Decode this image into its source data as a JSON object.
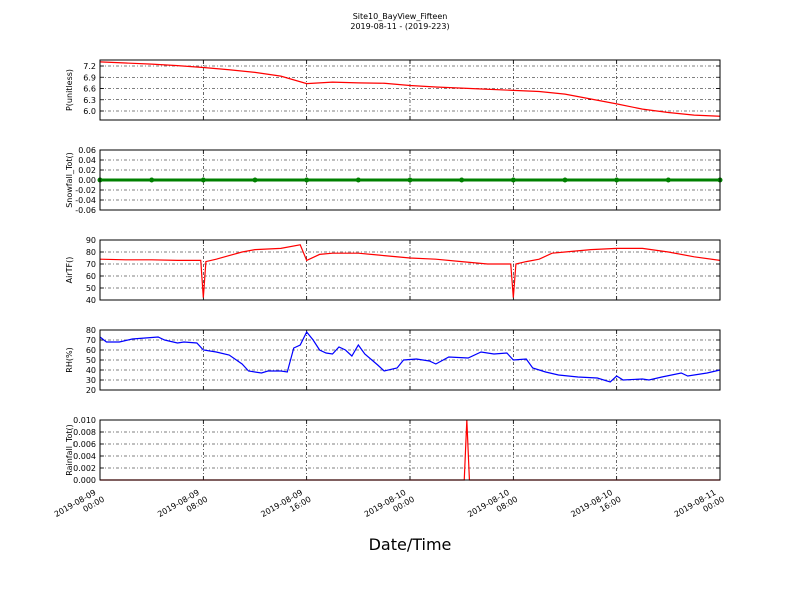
{
  "title": "Site10_BayView_Fifteen",
  "subtitle": "2019-08-11 - (2019-223)",
  "xlabel": "Date/Time",
  "chart_data": [
    {
      "type": "line",
      "ylabel": "P(unitless)",
      "color": "#ff0000",
      "grid": true,
      "xlim": [
        "2019-08-09 00:00",
        "2019-08-11 00:00"
      ],
      "xticks": [
        "2019-08-09 00:00",
        "2019-08-09 08:00",
        "2019-08-09 16:00",
        "2019-08-10 00:00",
        "2019-08-10 08:00",
        "2019-08-10 16:00",
        "2019-08-11 00:00"
      ],
      "ylim": [
        5.76,
        7.36
      ],
      "yticks": [
        {
          "value": 6,
          "label": "6.0"
        },
        6.3,
        6.6,
        6.9,
        7.2
      ],
      "x": [
        "2019-08-09 00:00",
        "2019-08-09 02:00",
        "2019-08-09 04:00",
        "2019-08-09 06:00",
        "2019-08-09 08:00",
        "2019-08-09 10:00",
        "2019-08-09 12:00",
        "2019-08-09 14:00",
        "2019-08-09 16:00",
        "2019-08-09 18:00",
        "2019-08-09 20:00",
        "2019-08-09 22:00",
        "2019-08-10 00:00",
        "2019-08-10 02:00",
        "2019-08-10 04:00",
        "2019-08-10 06:00",
        "2019-08-10 08:00",
        "2019-08-10 10:00",
        "2019-08-10 12:00",
        "2019-08-10 14:00",
        "2019-08-10 16:00",
        "2019-08-10 18:00",
        "2019-08-10 20:00",
        "2019-08-10 22:00",
        "2019-08-11 00:00"
      ],
      "values": [
        7.31,
        7.28,
        7.25,
        7.21,
        7.16,
        7.1,
        7.03,
        6.93,
        6.73,
        6.77,
        6.75,
        6.74,
        6.68,
        6.64,
        6.61,
        6.58,
        6.55,
        6.52,
        6.45,
        6.32,
        6.19,
        6.05,
        5.96,
        5.89,
        5.86
      ]
    },
    {
      "type": "line",
      "ylabel": "Snowfall_Tot()",
      "color": "#008000",
      "markers": true,
      "grid": true,
      "xlim": [
        "2019-08-09 00:00",
        "2019-08-11 00:00"
      ],
      "xticks": [
        "2019-08-09 00:00",
        "2019-08-09 08:00",
        "2019-08-09 16:00",
        "2019-08-10 00:00",
        "2019-08-10 08:00",
        "2019-08-10 16:00",
        "2019-08-11 00:00"
      ],
      "ylim": [
        -0.06,
        0.06
      ],
      "yticks": [
        -0.06,
        -0.04,
        -0.02,
        {
          "value": 0,
          "label": "0.00"
        },
        0.02,
        0.04,
        0.06
      ],
      "x": [
        "2019-08-09 00:00",
        "2019-08-09 04:00",
        "2019-08-09 08:00",
        "2019-08-09 12:00",
        "2019-08-09 16:00",
        "2019-08-09 20:00",
        "2019-08-10 00:00",
        "2019-08-10 04:00",
        "2019-08-10 08:00",
        "2019-08-10 12:00",
        "2019-08-10 16:00",
        "2019-08-10 20:00",
        "2019-08-11 00:00"
      ],
      "values": [
        0,
        0,
        0,
        0,
        0,
        0,
        0,
        0,
        0,
        0,
        0,
        0,
        0
      ]
    },
    {
      "type": "line",
      "ylabel": "AirTF()",
      "color": "#ff0000",
      "grid": true,
      "xlim": [
        "2019-08-09 00:00",
        "2019-08-11 00:00"
      ],
      "xticks": [
        "2019-08-09 00:00",
        "2019-08-09 08:00",
        "2019-08-09 16:00",
        "2019-08-10 00:00",
        "2019-08-10 08:00",
        "2019-08-10 16:00",
        "2019-08-11 00:00"
      ],
      "ylim": [
        40,
        90
      ],
      "yticks": [
        40,
        50,
        60,
        70,
        80,
        90
      ],
      "x": [
        "2019-08-09 00:00",
        "2019-08-09 02:00",
        "2019-08-09 04:00",
        "2019-08-09 06:00",
        "2019-08-09 07:48",
        "2019-08-09 08:00",
        "2019-08-09 08:12",
        "2019-08-09 09:00",
        "2019-08-09 10:00",
        "2019-08-09 11:00",
        "2019-08-09 12:00",
        "2019-08-09 14:00",
        "2019-08-09 15:30",
        "2019-08-09 16:00",
        "2019-08-09 17:00",
        "2019-08-09 18:00",
        "2019-08-09 20:00",
        "2019-08-09 22:00",
        "2019-08-10 00:00",
        "2019-08-10 02:00",
        "2019-08-10 04:00",
        "2019-08-10 06:00",
        "2019-08-10 07:48",
        "2019-08-10 08:00",
        "2019-08-10 08:12",
        "2019-08-10 09:00",
        "2019-08-10 10:00",
        "2019-08-10 11:00",
        "2019-08-10 12:00",
        "2019-08-10 14:00",
        "2019-08-10 16:00",
        "2019-08-10 18:00",
        "2019-08-10 20:00",
        "2019-08-10 22:00",
        "2019-08-11 00:00"
      ],
      "values": [
        74,
        73.5,
        73.5,
        73,
        73,
        42,
        72,
        74,
        77,
        80,
        82,
        83,
        86,
        73,
        78,
        79,
        79,
        77,
        75,
        74,
        72,
        70,
        70,
        42,
        70,
        72,
        74,
        79,
        80,
        82,
        83,
        83,
        80,
        76,
        73
      ]
    },
    {
      "type": "line",
      "ylabel": "RH(%)",
      "color": "#0000ff",
      "grid": true,
      "xlim": [
        "2019-08-09 00:00",
        "2019-08-11 00:00"
      ],
      "xticks": [
        "2019-08-09 00:00",
        "2019-08-09 08:00",
        "2019-08-09 16:00",
        "2019-08-10 00:00",
        "2019-08-10 08:00",
        "2019-08-10 16:00",
        "2019-08-11 00:00"
      ],
      "ylim": [
        20,
        80
      ],
      "yticks": [
        20,
        30,
        40,
        50,
        60,
        70,
        80
      ],
      "x": [
        "2019-08-09 00:00",
        "2019-08-09 00:30",
        "2019-08-09 01:30",
        "2019-08-09 02:30",
        "2019-08-09 03:30",
        "2019-08-09 04:30",
        "2019-08-09 05:00",
        "2019-08-09 06:00",
        "2019-08-09 06:30",
        "2019-08-09 07:30",
        "2019-08-09 08:00",
        "2019-08-09 09:00",
        "2019-08-09 10:00",
        "2019-08-09 11:00",
        "2019-08-09 11:30",
        "2019-08-09 12:30",
        "2019-08-09 13:00",
        "2019-08-09 14:00",
        "2019-08-09 14:30",
        "2019-08-09 15:00",
        "2019-08-09 15:30",
        "2019-08-09 16:00",
        "2019-08-09 16:30",
        "2019-08-09 17:00",
        "2019-08-09 17:30",
        "2019-08-09 18:00",
        "2019-08-09 18:30",
        "2019-08-09 19:00",
        "2019-08-09 19:30",
        "2019-08-09 20:00",
        "2019-08-09 20:30",
        "2019-08-09 21:30",
        "2019-08-09 22:00",
        "2019-08-09 23:00",
        "2019-08-09 23:30",
        "2019-08-10 00:30",
        "2019-08-10 01:30",
        "2019-08-10 02:00",
        "2019-08-10 03:00",
        "2019-08-10 04:30",
        "2019-08-10 05:30",
        "2019-08-10 06:30",
        "2019-08-10 07:30",
        "2019-08-10 08:00",
        "2019-08-10 09:00",
        "2019-08-10 09:30",
        "2019-08-10 10:30",
        "2019-08-10 11:30",
        "2019-08-10 13:00",
        "2019-08-10 14:30",
        "2019-08-10 15:30",
        "2019-08-10 16:00",
        "2019-08-10 16:30",
        "2019-08-10 18:00",
        "2019-08-10 18:30",
        "2019-08-10 19:30",
        "2019-08-10 21:00",
        "2019-08-10 21:30",
        "2019-08-10 23:00",
        "2019-08-11 00:00"
      ],
      "values": [
        73,
        68,
        68,
        71,
        72,
        73,
        70,
        67,
        68,
        67,
        60,
        58,
        55,
        46,
        39,
        37,
        39,
        39,
        38,
        62,
        65,
        78,
        70,
        60,
        57,
        56,
        63,
        60,
        54,
        65,
        56,
        45,
        39,
        42,
        50,
        51,
        49,
        46,
        53,
        52,
        58,
        56,
        57,
        50,
        51,
        42,
        38,
        35,
        33,
        32,
        28,
        34,
        30,
        31,
        30,
        33,
        37,
        34,
        37,
        40
      ]
    },
    {
      "type": "line",
      "ylabel": "Rainfall_Tot()",
      "color": "#ff0000",
      "grid": true,
      "xlim": [
        "2019-08-09 00:00",
        "2019-08-11 00:00"
      ],
      "xticks": [
        {
          "value": "2019-08-09 00:00",
          "label": "2019-08-09\n00:00"
        },
        {
          "value": "2019-08-09 08:00",
          "label": "2019-08-09\n08:00"
        },
        {
          "value": "2019-08-09 16:00",
          "label": "2019-08-09\n16:00"
        },
        {
          "value": "2019-08-10 00:00",
          "label": "2019-08-10\n00:00"
        },
        {
          "value": "2019-08-10 08:00",
          "label": "2019-08-10\n08:00"
        },
        {
          "value": "2019-08-10 16:00",
          "label": "2019-08-10\n16:00"
        },
        {
          "value": "2019-08-11 00:00",
          "label": "2019-08-11\n00:00"
        }
      ],
      "ylim": [
        0,
        0.01
      ],
      "yticks": [
        {
          "value": 0,
          "label": "0.000"
        },
        0.002,
        0.004,
        0.006,
        0.008,
        {
          "value": 0.01,
          "label": "0.010"
        }
      ],
      "x": [
        "2019-08-09 00:00",
        "2019-08-10 04:12",
        "2019-08-10 04:24",
        "2019-08-10 04:36",
        "2019-08-11 00:00"
      ],
      "values": [
        0,
        0,
        0.01,
        0,
        0
      ]
    }
  ]
}
